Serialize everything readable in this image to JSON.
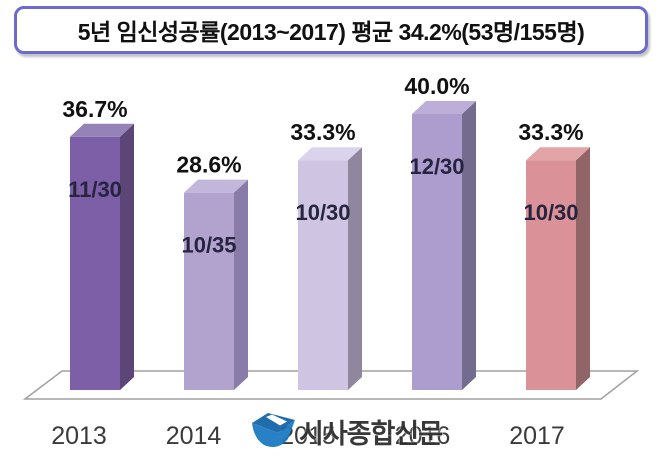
{
  "title": "5년 임신성공률(2013~2017) 평균 34.2%(53명/155명)",
  "watermark": {
    "text": "시사종합신문",
    "logo_color": "#1E7BC2"
  },
  "chart_data": {
    "type": "bar",
    "style": "3d-column",
    "title": "5년 임신성공률(2013~2017) 평균 34.2%(53명/155명)",
    "categories": [
      "2013",
      "2014",
      "2015",
      "2016",
      "2017"
    ],
    "values": [
      36.7,
      28.6,
      33.3,
      40.0,
      33.3
    ],
    "value_labels": [
      "36.7%",
      "28.6%",
      "33.3%",
      "40.0%",
      "33.3%"
    ],
    "fraction_labels": [
      "11/30",
      "10/35",
      "10/30",
      "12/30",
      "10/30"
    ],
    "average_label": "34.2%",
    "total_fraction_label": "53명/155명",
    "xlabel": "",
    "ylabel": "",
    "ylim": [
      0,
      42
    ],
    "grid": false,
    "legend": false,
    "floor_stroke": "#A0A0A0",
    "bar_colors": [
      {
        "front": "#7C5FA6",
        "top": "#9583B8",
        "side": "#5C4678"
      },
      {
        "front": "#B1A2CE",
        "top": "#C2B6DA",
        "side": "#8A7CA8"
      },
      {
        "front": "#CFC5E2",
        "top": "#DBD3EB",
        "side": "#90879F"
      },
      {
        "front": "#AD9DCF",
        "top": "#BCAED9",
        "side": "#746C8E"
      },
      {
        "front": "#DA9298",
        "top": "#E2A4A6",
        "side": "#916568"
      }
    ],
    "percent_label_color": "#111111",
    "fraction_label_color": "#26243E",
    "axis_label_color": "#3A3A3A"
  }
}
